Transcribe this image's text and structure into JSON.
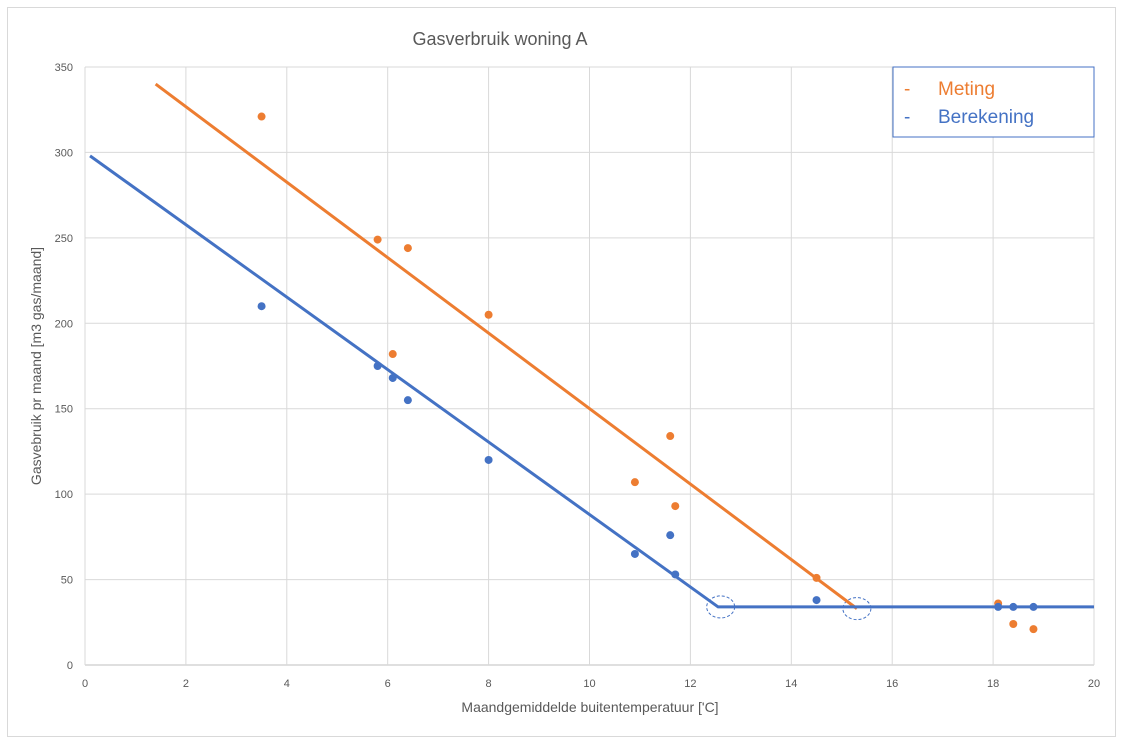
{
  "chart_data": {
    "type": "scatter",
    "title": "Gasverbruik woning A",
    "xlabel": "Maandgemiddelde buitentemperatuur ['C]",
    "ylabel": "Gasvebruik pr maand [m3 gas/maand]",
    "xlim": [
      0,
      20
    ],
    "ylim": [
      0,
      350
    ],
    "xticks": [
      "0",
      "2",
      "4",
      "6",
      "8",
      "10",
      "12",
      "14",
      "16",
      "18",
      "20"
    ],
    "yticks": [
      "0",
      "50",
      "100",
      "150",
      "200",
      "250",
      "300",
      "350"
    ],
    "grid": true,
    "legend_position": "top-right",
    "series": [
      {
        "name": "Meting",
        "color": "#ED7D31",
        "points": [
          [
            3.5,
            321
          ],
          [
            5.8,
            249
          ],
          [
            6.1,
            182
          ],
          [
            6.4,
            244
          ],
          [
            8.0,
            205
          ],
          [
            10.9,
            107
          ],
          [
            11.6,
            134
          ],
          [
            11.7,
            93
          ],
          [
            14.5,
            51
          ],
          [
            18.1,
            36
          ],
          [
            18.4,
            24
          ],
          [
            18.8,
            21
          ]
        ],
        "trendline": [
          [
            1.4,
            340
          ],
          [
            15.3,
            33
          ]
        ]
      },
      {
        "name": "Berekening",
        "color": "#4472C4",
        "points": [
          [
            3.5,
            210
          ],
          [
            5.8,
            175
          ],
          [
            6.1,
            168
          ],
          [
            6.4,
            155
          ],
          [
            8.0,
            120
          ],
          [
            10.9,
            65
          ],
          [
            11.6,
            76
          ],
          [
            11.7,
            53
          ],
          [
            14.5,
            38
          ],
          [
            18.1,
            34
          ],
          [
            18.4,
            34
          ],
          [
            18.8,
            34
          ]
        ],
        "trendline": [
          [
            0.1,
            298
          ],
          [
            12.55,
            34
          ],
          [
            20,
            34
          ]
        ]
      }
    ],
    "annotations": [
      {
        "type": "dashed-ellipse",
        "x": 12.6,
        "y": 34,
        "color": "#4472C4"
      },
      {
        "type": "dashed-ellipse",
        "x": 15.3,
        "y": 33,
        "color": "#4472C4"
      }
    ]
  },
  "legend": {
    "items": [
      {
        "marker": "-",
        "label": "Meting",
        "color": "#ED7D31"
      },
      {
        "marker": "-",
        "label": "Berekening",
        "color": "#4472C4"
      }
    ]
  }
}
